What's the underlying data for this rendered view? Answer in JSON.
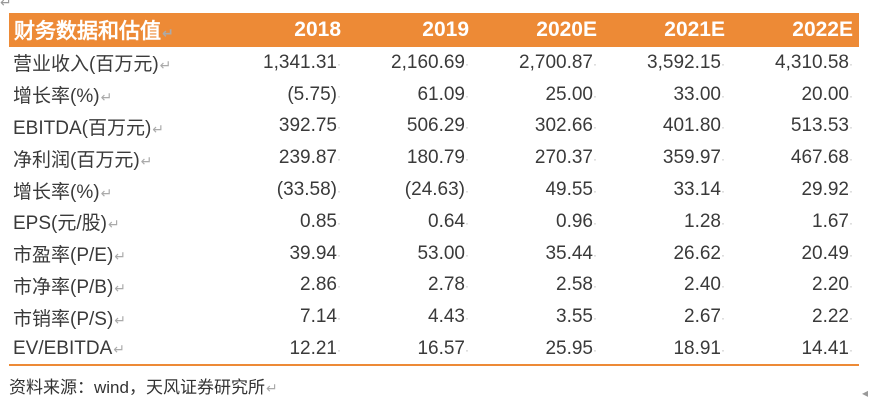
{
  "header": {
    "label": "财务数据和估值",
    "years": [
      "2018",
      "2019",
      "2020E",
      "2021E",
      "2022E"
    ]
  },
  "rows": [
    {
      "label": "营业收入(百万元)",
      "values": [
        "1,341.31",
        "2,160.69",
        "2,700.87",
        "3,592.15",
        "4,310.58"
      ]
    },
    {
      "label": "增长率(%)",
      "values": [
        "(5.75)",
        "61.09",
        "25.00",
        "33.00",
        "20.00"
      ]
    },
    {
      "label": "EBITDA(百万元)",
      "values": [
        "392.75",
        "506.29",
        "302.66",
        "401.80",
        "513.53"
      ]
    },
    {
      "label": "净利润(百万元)",
      "values": [
        "239.87",
        "180.79",
        "270.37",
        "359.97",
        "467.68"
      ]
    },
    {
      "label": "增长率(%)",
      "values": [
        "(33.58)",
        "(24.63)",
        "49.55",
        "33.14",
        "29.92"
      ]
    },
    {
      "label": "EPS(元/股)",
      "values": [
        "0.85",
        "0.64",
        "0.96",
        "1.28",
        "1.67"
      ]
    },
    {
      "label": "市盈率(P/E)",
      "values": [
        "39.94",
        "53.00",
        "35.44",
        "26.62",
        "20.49"
      ]
    },
    {
      "label": "市净率(P/B)",
      "values": [
        "2.86",
        "2.78",
        "2.58",
        "2.40",
        "2.20"
      ]
    },
    {
      "label": "市销率(P/S)",
      "values": [
        "7.14",
        "4.43",
        "3.55",
        "2.67",
        "2.22"
      ]
    },
    {
      "label": "EV/EBITDA",
      "values": [
        "12.21",
        "16.57",
        "25.95",
        "18.91",
        "14.41"
      ]
    }
  ],
  "source": "资料来源：wind，天风证券研究所",
  "colors": {
    "header_bg": "#ED8A36",
    "header_text": "#FFFFFF"
  }
}
